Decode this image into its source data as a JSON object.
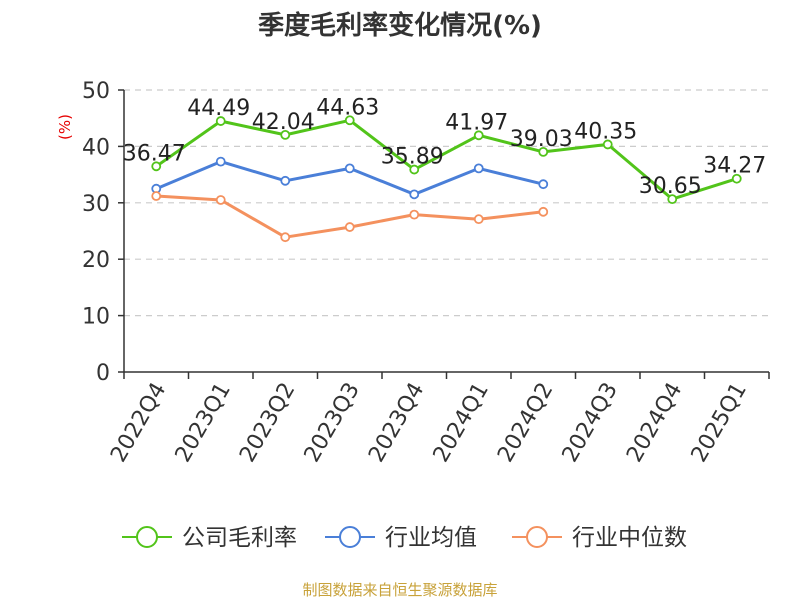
{
  "chart_data": {
    "type": "line",
    "title": "季度毛利率变化情况(%)",
    "ylabel": "(%)",
    "xlabel": "",
    "categories": [
      "2022Q4",
      "2023Q1",
      "2023Q2",
      "2023Q3",
      "2023Q4",
      "2024Q1",
      "2024Q2",
      "2024Q3",
      "2024Q4",
      "2025Q1"
    ],
    "ylim": [
      0,
      50
    ],
    "yticks": [
      0,
      10,
      20,
      30,
      40,
      50
    ],
    "grid": true,
    "legend_position": "bottom",
    "series": [
      {
        "name": "公司毛利率",
        "color": "#52c41a",
        "values": [
          36.47,
          44.49,
          42.04,
          44.63,
          35.89,
          41.97,
          39.03,
          40.35,
          30.65,
          34.27
        ],
        "labels": [
          "36.47",
          "44.49",
          "42.04",
          "44.63",
          "35.89",
          "41.97",
          "39.03",
          "40.35",
          "30.65",
          "34.27"
        ]
      },
      {
        "name": "行业均值",
        "color": "#4a7fd8",
        "values": [
          32.5,
          37.3,
          33.9,
          36.1,
          31.5,
          36.1,
          33.3,
          null,
          null,
          null
        ]
      },
      {
        "name": "行业中位数",
        "color": "#f4915e",
        "values": [
          31.2,
          30.5,
          23.9,
          25.7,
          27.9,
          27.1,
          28.4,
          null,
          null,
          null
        ]
      }
    ]
  },
  "source": "制图数据来自恒生聚源数据库"
}
